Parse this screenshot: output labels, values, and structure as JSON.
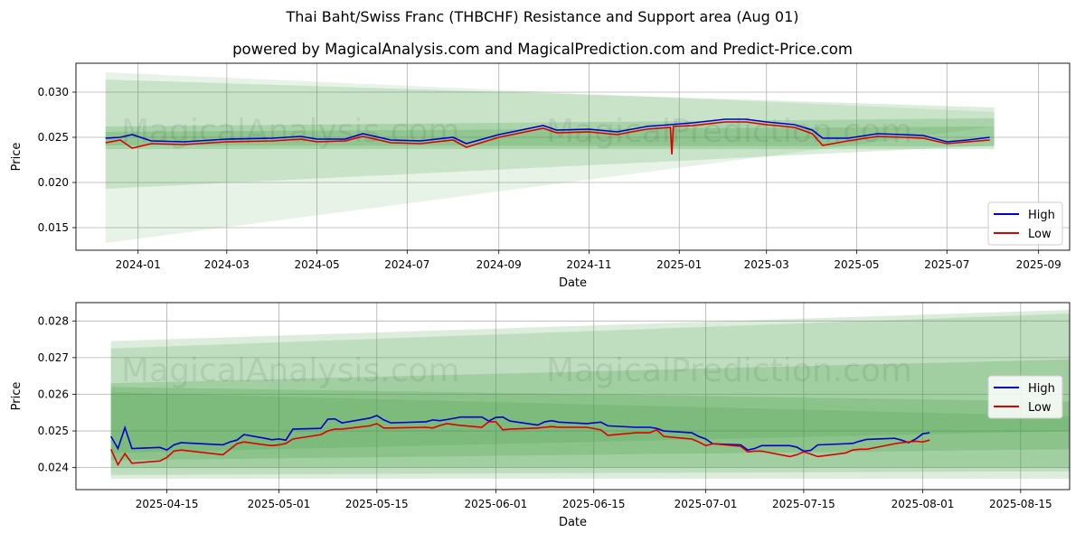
{
  "title": "Thai Baht/Swiss Franc (THBCHF) Resistance and Support area (Aug 01)",
  "subtitle": "powered by MagicalAnalysis.com and MagicalPrediction.com and Predict-Price.com",
  "watermarks": [
    "MagicalAnalysis.com",
    "MagicalPrediction.com"
  ],
  "colors": {
    "high": "#0000cc",
    "low": "#dd0000",
    "band": "#3d9a3d"
  },
  "chart_data": [
    {
      "type": "line",
      "xlabel": "Date",
      "ylabel": "Price",
      "x_ticks": [
        "2024-01",
        "2024-03",
        "2024-05",
        "2024-07",
        "2024-09",
        "2024-11",
        "2025-01",
        "2025-03",
        "2025-05",
        "2025-07",
        "2025-09"
      ],
      "y_ticks": [
        "0.015",
        "0.020",
        "0.025",
        "0.030"
      ],
      "ylim": [
        0.0125,
        0.0332
      ],
      "xlim": [
        "2023-11-20",
        "2025-09-22"
      ],
      "legend": {
        "placement": "lower right",
        "entries": [
          "High",
          "Low"
        ]
      },
      "grid": true,
      "series": [
        {
          "name": "High",
          "points": [
            [
              "2023-12-10",
              0.0249
            ],
            [
              "2023-12-20",
              0.025
            ],
            [
              "2023-12-28",
              0.0253
            ],
            [
              "2024-01-10",
              0.0246
            ],
            [
              "2024-02-01",
              0.0245
            ],
            [
              "2024-03-01",
              0.0248
            ],
            [
              "2024-04-01",
              0.0249
            ],
            [
              "2024-04-20",
              0.0251
            ],
            [
              "2024-05-01",
              0.0248
            ],
            [
              "2024-05-20",
              0.0248
            ],
            [
              "2024-06-01",
              0.0254
            ],
            [
              "2024-06-20",
              0.0247
            ],
            [
              "2024-07-10",
              0.0246
            ],
            [
              "2024-08-01",
              0.025
            ],
            [
              "2024-08-10",
              0.0243
            ],
            [
              "2024-09-01",
              0.0253
            ],
            [
              "2024-10-01",
              0.0263
            ],
            [
              "2024-10-10",
              0.0258
            ],
            [
              "2024-11-01",
              0.0259
            ],
            [
              "2024-11-20",
              0.0256
            ],
            [
              "2024-12-10",
              0.0262
            ],
            [
              "2024-12-26",
              0.0264
            ],
            [
              "2025-01-10",
              0.0266
            ],
            [
              "2025-02-01",
              0.027
            ],
            [
              "2025-02-15",
              0.027
            ],
            [
              "2025-03-01",
              0.0267
            ],
            [
              "2025-03-20",
              0.0264
            ],
            [
              "2025-04-01",
              0.0258
            ],
            [
              "2025-04-08",
              0.0249
            ],
            [
              "2025-04-25",
              0.0249
            ],
            [
              "2025-05-15",
              0.0254
            ],
            [
              "2025-06-01",
              0.0253
            ],
            [
              "2025-06-15",
              0.0252
            ],
            [
              "2025-07-01",
              0.0245
            ],
            [
              "2025-07-15",
              0.0247
            ],
            [
              "2025-07-30",
              0.025
            ]
          ]
        },
        {
          "name": "Low",
          "points": [
            [
              "2023-12-10",
              0.0244
            ],
            [
              "2023-12-20",
              0.0247
            ],
            [
              "2023-12-28",
              0.0238
            ],
            [
              "2024-01-10",
              0.0243
            ],
            [
              "2024-02-01",
              0.0242
            ],
            [
              "2024-03-01",
              0.0245
            ],
            [
              "2024-04-01",
              0.0246
            ],
            [
              "2024-04-20",
              0.0248
            ],
            [
              "2024-05-01",
              0.0245
            ],
            [
              "2024-05-20",
              0.0246
            ],
            [
              "2024-06-01",
              0.0251
            ],
            [
              "2024-06-20",
              0.0244
            ],
            [
              "2024-07-10",
              0.0243
            ],
            [
              "2024-08-01",
              0.0247
            ],
            [
              "2024-08-10",
              0.0239
            ],
            [
              "2024-09-01",
              0.025
            ],
            [
              "2024-10-01",
              0.026
            ],
            [
              "2024-10-10",
              0.0255
            ],
            [
              "2024-11-01",
              0.0256
            ],
            [
              "2024-11-20",
              0.0253
            ],
            [
              "2024-12-10",
              0.0259
            ],
            [
              "2024-12-26",
              0.0261
            ],
            [
              "2024-12-27",
              0.0231
            ],
            [
              "2024-12-28",
              0.0262
            ],
            [
              "2025-01-10",
              0.0263
            ],
            [
              "2025-02-01",
              0.0267
            ],
            [
              "2025-02-15",
              0.0267
            ],
            [
              "2025-03-01",
              0.0264
            ],
            [
              "2025-03-20",
              0.0261
            ],
            [
              "2025-04-01",
              0.0254
            ],
            [
              "2025-04-08",
              0.0241
            ],
            [
              "2025-04-25",
              0.0246
            ],
            [
              "2025-05-15",
              0.0251
            ],
            [
              "2025-06-01",
              0.025
            ],
            [
              "2025-06-15",
              0.0249
            ],
            [
              "2025-07-01",
              0.0243
            ],
            [
              "2025-07-15",
              0.0245
            ],
            [
              "2025-07-30",
              0.0247
            ]
          ]
        }
      ]
    },
    {
      "type": "line",
      "xlabel": "Date",
      "ylabel": "Price",
      "x_ticks": [
        "2025-04-15",
        "2025-05-01",
        "2025-05-15",
        "2025-06-01",
        "2025-06-15",
        "2025-07-01",
        "2025-07-15",
        "2025-08-01",
        "2025-08-15"
      ],
      "y_ticks": [
        "0.024",
        "0.025",
        "0.026",
        "0.027",
        "0.028"
      ],
      "ylim": [
        0.0234,
        0.0285
      ],
      "xlim": [
        "2025-04-02",
        "2025-08-22"
      ],
      "legend": {
        "placement": "center right",
        "entries": [
          "High",
          "Low"
        ]
      },
      "grid": true,
      "series": [
        {
          "name": "High",
          "points": [
            [
              "2025-04-07",
              0.02485
            ],
            [
              "2025-04-08",
              0.02452
            ],
            [
              "2025-04-09",
              0.02509
            ],
            [
              "2025-04-10",
              0.02452
            ],
            [
              "2025-04-14",
              0.02455
            ],
            [
              "2025-04-15",
              0.02448
            ],
            [
              "2025-04-16",
              0.02462
            ],
            [
              "2025-04-17",
              0.02468
            ],
            [
              "2025-04-23",
              0.02462
            ],
            [
              "2025-04-24",
              0.0247
            ],
            [
              "2025-04-25",
              0.02475
            ],
            [
              "2025-04-26",
              0.0249
            ],
            [
              "2025-04-29",
              0.0248
            ],
            [
              "2025-04-30",
              0.02476
            ],
            [
              "2025-05-01",
              0.02478
            ],
            [
              "2025-05-02",
              0.02475
            ],
            [
              "2025-05-03",
              0.02505
            ],
            [
              "2025-05-07",
              0.02507
            ],
            [
              "2025-05-08",
              0.02532
            ],
            [
              "2025-05-09",
              0.02533
            ],
            [
              "2025-05-10",
              0.02522
            ],
            [
              "2025-05-14",
              0.02535
            ],
            [
              "2025-05-15",
              0.02542
            ],
            [
              "2025-05-16",
              0.0253
            ],
            [
              "2025-05-17",
              0.02522
            ],
            [
              "2025-05-22",
              0.02525
            ],
            [
              "2025-05-23",
              0.0253
            ],
            [
              "2025-05-24",
              0.02528
            ],
            [
              "2025-05-25",
              0.02531
            ],
            [
              "2025-05-27",
              0.02538
            ],
            [
              "2025-05-30",
              0.02538
            ],
            [
              "2025-05-31",
              0.02527
            ],
            [
              "2025-06-01",
              0.02537
            ],
            [
              "2025-06-02",
              0.02538
            ],
            [
              "2025-06-03",
              0.02527
            ],
            [
              "2025-06-07",
              0.02516
            ],
            [
              "2025-06-08",
              0.02525
            ],
            [
              "2025-06-09",
              0.02528
            ],
            [
              "2025-06-10",
              0.02524
            ],
            [
              "2025-06-14",
              0.0252
            ],
            [
              "2025-06-16",
              0.02524
            ],
            [
              "2025-06-17",
              0.02514
            ],
            [
              "2025-06-21",
              0.0251
            ],
            [
              "2025-06-23",
              0.0251
            ],
            [
              "2025-06-24",
              0.02507
            ],
            [
              "2025-06-25",
              0.025
            ],
            [
              "2025-06-29",
              0.02495
            ],
            [
              "2025-06-30",
              0.02485
            ],
            [
              "2025-07-01",
              0.02478
            ],
            [
              "2025-07-02",
              0.02465
            ],
            [
              "2025-07-06",
              0.02462
            ],
            [
              "2025-07-07",
              0.02448
            ],
            [
              "2025-07-08",
              0.02452
            ],
            [
              "2025-07-09",
              0.0246
            ],
            [
              "2025-07-13",
              0.0246
            ],
            [
              "2025-07-14",
              0.02456
            ],
            [
              "2025-07-15",
              0.02445
            ],
            [
              "2025-07-16",
              0.02447
            ],
            [
              "2025-07-17",
              0.02462
            ],
            [
              "2025-07-21",
              0.02465
            ],
            [
              "2025-07-22",
              0.02466
            ],
            [
              "2025-07-23",
              0.02472
            ],
            [
              "2025-07-24",
              0.02477
            ],
            [
              "2025-07-28",
              0.0248
            ],
            [
              "2025-07-29",
              0.02475
            ],
            [
              "2025-07-30",
              0.02468
            ],
            [
              "2025-07-31",
              0.02478
            ],
            [
              "2025-08-01",
              0.02492
            ],
            [
              "2025-08-02",
              0.02495
            ]
          ]
        },
        {
          "name": "Low",
          "points": [
            [
              "2025-04-07",
              0.0245
            ],
            [
              "2025-04-08",
              0.02408
            ],
            [
              "2025-04-09",
              0.02438
            ],
            [
              "2025-04-10",
              0.02412
            ],
            [
              "2025-04-14",
              0.02418
            ],
            [
              "2025-04-15",
              0.02428
            ],
            [
              "2025-04-16",
              0.02445
            ],
            [
              "2025-04-17",
              0.02448
            ],
            [
              "2025-04-23",
              0.02435
            ],
            [
              "2025-04-24",
              0.0245
            ],
            [
              "2025-04-25",
              0.02465
            ],
            [
              "2025-04-26",
              0.0247
            ],
            [
              "2025-04-29",
              0.02462
            ],
            [
              "2025-04-30",
              0.0246
            ],
            [
              "2025-05-01",
              0.02462
            ],
            [
              "2025-05-02",
              0.02466
            ],
            [
              "2025-05-03",
              0.02478
            ],
            [
              "2025-05-07",
              0.0249
            ],
            [
              "2025-05-08",
              0.025
            ],
            [
              "2025-05-09",
              0.02505
            ],
            [
              "2025-05-10",
              0.02505
            ],
            [
              "2025-05-14",
              0.02514
            ],
            [
              "2025-05-15",
              0.0252
            ],
            [
              "2025-05-16",
              0.02508
            ],
            [
              "2025-05-17",
              0.02508
            ],
            [
              "2025-05-22",
              0.0251
            ],
            [
              "2025-05-23",
              0.02508
            ],
            [
              "2025-05-24",
              0.02515
            ],
            [
              "2025-05-25",
              0.0252
            ],
            [
              "2025-05-27",
              0.02515
            ],
            [
              "2025-05-30",
              0.0251
            ],
            [
              "2025-05-31",
              0.02525
            ],
            [
              "2025-06-01",
              0.02525
            ],
            [
              "2025-06-02",
              0.02503
            ],
            [
              "2025-06-03",
              0.02505
            ],
            [
              "2025-06-07",
              0.02508
            ],
            [
              "2025-06-08",
              0.0251
            ],
            [
              "2025-06-09",
              0.02512
            ],
            [
              "2025-06-10",
              0.0251
            ],
            [
              "2025-06-14",
              0.0251
            ],
            [
              "2025-06-16",
              0.02503
            ],
            [
              "2025-06-17",
              0.02488
            ],
            [
              "2025-06-21",
              0.02495
            ],
            [
              "2025-06-23",
              0.02495
            ],
            [
              "2025-06-24",
              0.02503
            ],
            [
              "2025-06-25",
              0.02485
            ],
            [
              "2025-06-29",
              0.02478
            ],
            [
              "2025-06-30",
              0.0247
            ],
            [
              "2025-07-01",
              0.0246
            ],
            [
              "2025-07-02",
              0.02465
            ],
            [
              "2025-07-06",
              0.02458
            ],
            [
              "2025-07-07",
              0.02443
            ],
            [
              "2025-07-08",
              0.02445
            ],
            [
              "2025-07-09",
              0.02445
            ],
            [
              "2025-07-13",
              0.0243
            ],
            [
              "2025-07-14",
              0.02435
            ],
            [
              "2025-07-15",
              0.02443
            ],
            [
              "2025-07-16",
              0.02437
            ],
            [
              "2025-07-17",
              0.0243
            ],
            [
              "2025-07-21",
              0.0244
            ],
            [
              "2025-07-22",
              0.02448
            ],
            [
              "2025-07-23",
              0.0245
            ],
            [
              "2025-07-24",
              0.0245
            ],
            [
              "2025-07-28",
              0.02465
            ],
            [
              "2025-07-29",
              0.02468
            ],
            [
              "2025-07-30",
              0.0247
            ],
            [
              "2025-07-31",
              0.02472
            ],
            [
              "2025-08-01",
              0.0247
            ],
            [
              "2025-08-02",
              0.02475
            ]
          ]
        }
      ]
    }
  ]
}
